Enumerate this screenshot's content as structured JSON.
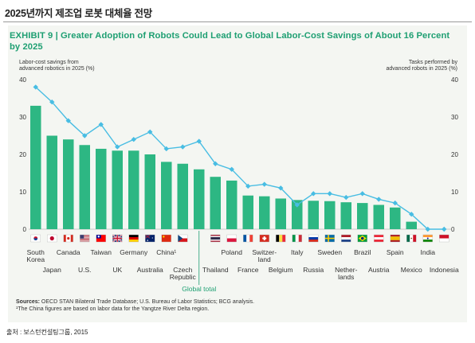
{
  "page_heading": "2025년까지 제조업 로봇 대체율 전망",
  "exhibit_title": "EXHIBIT 9 | Greater Adoption of Robots Could Lead to Global Labor-Cost Savings of About 16 Percent by 2025",
  "left_axis_caption": [
    "Labor-cost savings from",
    "advanced robotics in 2025 (%)"
  ],
  "right_axis_caption": [
    "Tasks performed by",
    "advanced robots in 2025 (%)"
  ],
  "sources_label": "Sources:",
  "sources_text": "OECD STAN Bilateral Trade Database; U.S. Bureau of Labor Statistics; BCG analysis.",
  "footnote": "¹The China figures are based on labor data for the Yangtze River Delta region.",
  "source_credit": "출처 : 보스턴컨설팅그룹, 2015",
  "colors": {
    "bars": "#2db783",
    "line": "#48bde3",
    "title": "#1e9f72",
    "panel": "#f4f6f2"
  },
  "chart_data": {
    "type": "bar",
    "title": "",
    "categories": [
      "South Korea",
      "Japan",
      "Canada",
      "U.S.",
      "Taiwan",
      "UK",
      "Germany",
      "Australia",
      "China¹",
      "Czech Republic",
      "Global total",
      "Thailand",
      "Poland",
      "France",
      "Switzer-land",
      "Belgium",
      "Italy",
      "Russia",
      "Sweden",
      "Nether-lands",
      "Brazil",
      "Austria",
      "Spain",
      "Mexico",
      "India",
      "Indonesia"
    ],
    "category_label_lines": [
      [
        "South",
        "Korea"
      ],
      [
        "Japan"
      ],
      [
        "Canada"
      ],
      [
        "U.S."
      ],
      [
        "Taiwan"
      ],
      [
        "UK"
      ],
      [
        "Germany"
      ],
      [
        "Australia"
      ],
      [
        "China¹"
      ],
      [
        "Czech",
        "Republic"
      ],
      [
        "Global total"
      ],
      [
        "Thailand"
      ],
      [
        "Poland"
      ],
      [
        "France"
      ],
      [
        "Switzer-",
        "land"
      ],
      [
        "Belgium"
      ],
      [
        "Italy"
      ],
      [
        "Russia"
      ],
      [
        "Sweden"
      ],
      [
        "Nether-",
        "lands"
      ],
      [
        "Brazil"
      ],
      [
        "Austria"
      ],
      [
        "Spain"
      ],
      [
        "Mexico"
      ],
      [
        "India"
      ],
      [
        "Indonesia"
      ]
    ],
    "flags": [
      "kr",
      "jp",
      "ca",
      "us",
      "tw",
      "uk",
      "de",
      "au",
      "cn",
      "cz",
      "",
      "th",
      "pl",
      "fr",
      "ch",
      "be",
      "it",
      "ru",
      "se",
      "nl",
      "br",
      "at",
      "es",
      "mx",
      "in",
      "id"
    ],
    "series": [
      {
        "name": "Labor-cost savings from advanced robotics in 2025 (%)",
        "axis": "left",
        "mark": "bar",
        "values": [
          33,
          25,
          24,
          22.5,
          21.5,
          21,
          21,
          20,
          18,
          17.5,
          16,
          14,
          13,
          9,
          8.8,
          8.2,
          7.8,
          7.6,
          7.5,
          7.2,
          7,
          6.5,
          5.8,
          2,
          0,
          0
        ]
      },
      {
        "name": "Tasks performed by advanced robots in 2025 (%)",
        "axis": "right",
        "mark": "line",
        "values": [
          38,
          34,
          29,
          25,
          28,
          22,
          24,
          26,
          21.5,
          22,
          23.5,
          17.5,
          16,
          11.5,
          12,
          11,
          6.5,
          9.5,
          9.5,
          8.5,
          9.5,
          8,
          7,
          4,
          0,
          0
        ]
      }
    ],
    "ylim": [
      0,
      40
    ],
    "y_ticks": [
      0,
      10,
      20,
      30,
      40
    ],
    "y2lim": [
      0,
      40
    ],
    "y2_ticks": [
      0,
      10,
      20,
      30,
      40
    ],
    "grid": false
  }
}
